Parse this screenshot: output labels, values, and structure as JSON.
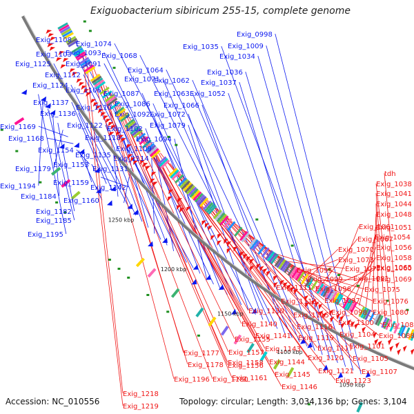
{
  "title": "Exiguobacterium sibiricum 255-15, complete genome",
  "accession": "Accession: NC_010556",
  "summary": "Topology: circular; Length: 3,034,136 bp; Genes: 3,104",
  "colors": {
    "forward": "#0b19f0",
    "reverse": "#f01414",
    "backbone": "#7a7a7a",
    "gc": "#1f8f1f"
  },
  "kbp_ticks": [
    "1050 kbp",
    "1100 kbp",
    "1150 kbp",
    "1200 kbp",
    "1250 kbp"
  ],
  "forward_genes": [
    "Exig_0998",
    "Exig_1009",
    "Exig_1034",
    "Exig_1035",
    "Exig_1036",
    "Exig_1037",
    "Exig_1052",
    "Exig_1062",
    "Exig_1063",
    "Exig_1064",
    "Exig_1066",
    "Exig_1068",
    "Exig_1071",
    "Exig_1072",
    "Exig_1074",
    "Exig_1079",
    "Exig_1086",
    "Exig_1087",
    "Exig_1091",
    "Exig_1092",
    "Exig_1093",
    "Exig_1094",
    "Exig_1102",
    "Exig_1103",
    "Exig_1106",
    "Exig_1108",
    "Exig_1109",
    "Exig_1110",
    "Exig_1112",
    "Exig_1114",
    "Exig_1118",
    "Exig_1122",
    "Exig_1124",
    "Exig_1125",
    "Exig_1131",
    "Exig_1135",
    "Exig_1136",
    "Exig_1137",
    "Exig_1142",
    "Exig_1153",
    "Exig_1154",
    "Exig_1159",
    "Exig_1160",
    "Exig_1168",
    "Exig_1169",
    "Exig_1179",
    "Exig_1182",
    "Exig_1184",
    "Exig_1185",
    "Exig_1194",
    "Exig_1195"
  ],
  "reverse_genes": [
    "tdh",
    "Exig_1038",
    "Exig_1041",
    "Exig_1044",
    "Exig_1048",
    "Exig_1051",
    "Exig_1054",
    "Exig_1056",
    "Exig_1058",
    "Exig_1060",
    "Exig_1061",
    "Exig_1065",
    "Exig_1067",
    "Exig_1069",
    "Exig_1070",
    "Exig_1073",
    "Exig_1075",
    "Exig_1076",
    "Exig_1077",
    "Exig_1080",
    "Exig_1081",
    "Exig_1082",
    "Exig_1088",
    "Exig_1095",
    "Exig_1096",
    "Exig_1097",
    "Exig_1098",
    "Exig_1099",
    "Exig_1100",
    "Exig_1101",
    "Exig_1104",
    "Exig_1105",
    "Exig_1107",
    "Exig_1111",
    "Exig_1113",
    "Exig_1115",
    "Exig_1116",
    "Exig_1117",
    "Exig_1119",
    "Exig_1120",
    "Exig_1121",
    "Exig_1123",
    "Exig_1130",
    "Exig_1140",
    "Exig_1141",
    "Exig_1143",
    "Exig_1144",
    "Exig_1145",
    "Exig_1146",
    "Exig_1155",
    "Exig_1156",
    "Exig_1157",
    "Exig_1158",
    "Exig_1161",
    "Exig_1177",
    "Exig_1178",
    "Exig_1180",
    "Exig_1196",
    "Exig_1218",
    "Exig_1219"
  ]
}
